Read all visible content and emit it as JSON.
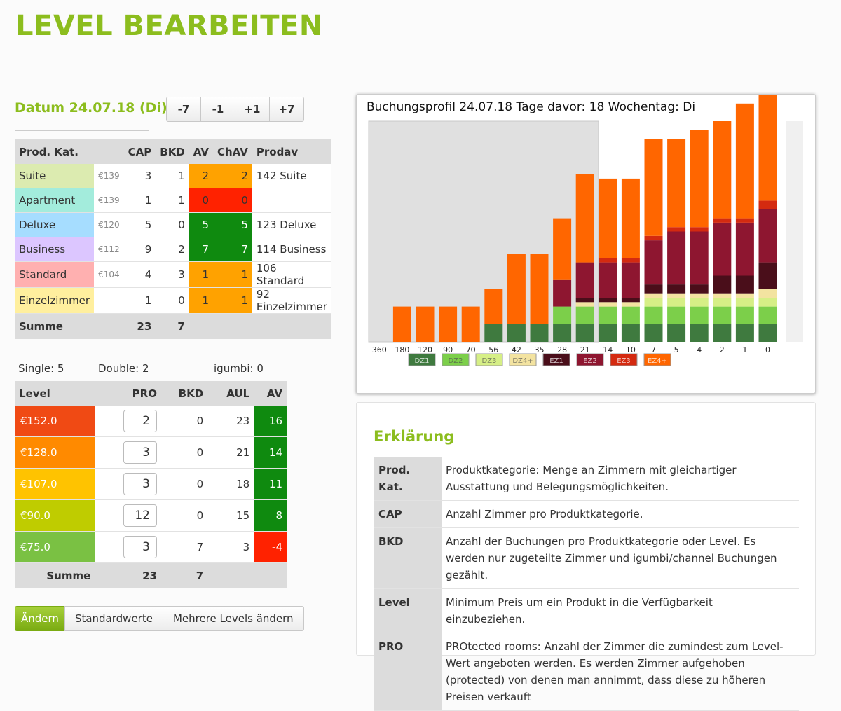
{
  "title": "LEVEL BEARBEITEN",
  "date_label": "Datum 24.07.18 (Di)",
  "nav_buttons": [
    "-7",
    "-1",
    "+1",
    "+7"
  ],
  "product_table": {
    "headers": [
      "Prod. Kat.",
      "CAP",
      "BKD",
      "AV",
      "ChAV",
      "Prodav"
    ],
    "rows": [
      {
        "name": "Suite",
        "price": "€139",
        "cap": "3",
        "bkd": "1",
        "av": "2",
        "chav": "2",
        "prodav": "142 Suite",
        "color": "#dcebb0",
        "av_color": "#ffa200"
      },
      {
        "name": "Apartment",
        "price": "€139",
        "cap": "1",
        "bkd": "1",
        "av": "0",
        "chav": "0",
        "prodav": "",
        "color": "#a3ecdc",
        "av_color": "#ff2200"
      },
      {
        "name": "Deluxe",
        "price": "€120",
        "cap": "5",
        "bkd": "0",
        "av": "5",
        "chav": "5",
        "prodav": "123 Deluxe",
        "color": "#a6ddff",
        "av_color": "#0f8a0f"
      },
      {
        "name": "Business",
        "price": "€112",
        "cap": "9",
        "bkd": "2",
        "av": "7",
        "chav": "7",
        "prodav": "114 Business",
        "color": "#dcc6ff",
        "av_color": "#0f8a0f"
      },
      {
        "name": "Standard",
        "price": "€104",
        "cap": "4",
        "bkd": "3",
        "av": "1",
        "chav": "1",
        "prodav": "106 Standard",
        "color": "#ffb0b0",
        "av_color": "#ffa200"
      },
      {
        "name": "Einzelzimmer",
        "price": "",
        "cap": "1",
        "bkd": "0",
        "av": "1",
        "chav": "1",
        "prodav": "92 Einzelzimmer",
        "color": "#ffef9e",
        "av_color": "#ffa200"
      }
    ],
    "sum_label": "Summe",
    "sum_cap": "23",
    "sum_bkd": "7"
  },
  "counts": {
    "single": "Single: 5",
    "double": "Double: 2",
    "igumbi": "igumbi: 0"
  },
  "level_table": {
    "headers": [
      "Level",
      "PRO",
      "BKD",
      "AUL",
      "AV"
    ],
    "rows": [
      {
        "level": "€152.0",
        "pro": "2",
        "bkd": "0",
        "aul": "23",
        "av": "16",
        "color": "#f04a14",
        "av_color": "#0f8a0f"
      },
      {
        "level": "€128.0",
        "pro": "3",
        "bkd": "0",
        "aul": "21",
        "av": "14",
        "color": "#ff8a00",
        "av_color": "#0f8a0f"
      },
      {
        "level": "€107.0",
        "pro": "3",
        "bkd": "0",
        "aul": "18",
        "av": "11",
        "color": "#ffc300",
        "av_color": "#0f8a0f"
      },
      {
        "level": "€90.0",
        "pro": "12",
        "bkd": "0",
        "aul": "15",
        "av": "8",
        "color": "#bfcc00",
        "av_color": "#0f8a0f"
      },
      {
        "level": "€75.0",
        "pro": "3",
        "bkd": "7",
        "aul": "3",
        "av": "-4",
        "color": "#7ac143",
        "av_color": "#ff2200"
      }
    ],
    "sum_label": "Summe",
    "sum_pro": "23",
    "sum_bkd": "7"
  },
  "buttons": {
    "change": "Ändern",
    "defaults": "Standardwerte",
    "multi": "Mehrere Levels ändern"
  },
  "chart_data": {
    "type": "bar",
    "title": "Buchungsprofil 24.07.18 Tage davor: 18 Wochentag: Di",
    "categories": [
      "360",
      "180",
      "120",
      "90",
      "70",
      "56",
      "42",
      "35",
      "28",
      "21",
      "14",
      "10",
      "7",
      "5",
      "4",
      "2",
      "1",
      "0"
    ],
    "series": [
      {
        "name": "DZ1",
        "color": "#3f7a3f",
        "values": [
          0,
          0,
          0,
          0,
          0,
          2,
          2,
          2,
          2,
          2,
          2,
          2,
          2,
          2,
          2,
          2,
          2,
          2
        ]
      },
      {
        "name": "DZ2",
        "color": "#7ccf4a",
        "values": [
          0,
          0,
          0,
          0,
          0,
          0,
          0,
          0,
          2,
          2,
          2,
          2,
          2,
          2,
          2,
          2,
          2,
          2
        ]
      },
      {
        "name": "DZ3",
        "color": "#d6ef86",
        "values": [
          0,
          0,
          0,
          0,
          0,
          0,
          0,
          0,
          0,
          0,
          0,
          0,
          1,
          1,
          1,
          1,
          1,
          1
        ]
      },
      {
        "name": "DZ4+",
        "color": "#f3e3a0",
        "values": [
          0,
          0,
          0,
          0,
          0,
          0,
          0,
          0,
          0,
          0.5,
          0.5,
          0.5,
          0.5,
          0.5,
          0.5,
          0.5,
          0.5,
          1
        ]
      },
      {
        "name": "EZ1",
        "color": "#4a0e1a",
        "values": [
          0,
          0,
          0,
          0,
          0,
          0,
          0,
          0,
          0,
          0.5,
          0.5,
          0.5,
          1,
          1,
          1,
          2,
          2,
          3
        ]
      },
      {
        "name": "EZ2",
        "color": "#8e1630",
        "values": [
          0,
          0,
          0,
          0,
          0,
          0,
          0,
          0,
          3,
          4,
          4,
          4,
          5,
          6,
          6,
          6,
          6,
          6
        ]
      },
      {
        "name": "EZ3",
        "color": "#d42a10",
        "values": [
          0,
          0,
          0,
          0,
          0,
          0,
          0,
          0,
          0,
          0,
          0.5,
          0.5,
          0.5,
          0.5,
          0.5,
          0.5,
          0.5,
          1
        ]
      },
      {
        "name": "EZ4+",
        "color": "#ff6600",
        "values": [
          0,
          4,
          4,
          4,
          4,
          4,
          8,
          8,
          7,
          10,
          9,
          9,
          11,
          10,
          11,
          11,
          13,
          12
        ]
      }
    ],
    "ylim": [
      0,
      25
    ],
    "legend_position": "bottom"
  },
  "explanation": {
    "title": "Erklärung",
    "rows": [
      {
        "term": "Prod. Kat.",
        "text": "Produktkategorie: Menge an Zimmern mit gleichartiger Ausstattung und Belegungsmöglichkeiten."
      },
      {
        "term": "CAP",
        "text": "Anzahl Zimmer pro Produktkategorie."
      },
      {
        "term": "BKD",
        "text": "Anzahl der Buchungen pro Produktkategorie oder Level. Es werden nur zugeteilte Zimmer und igumbi/channel Buchungen gezählt."
      },
      {
        "term": "Level",
        "text": "Minimum Preis um ein Produkt in die Verfügbarkeit einzubeziehen."
      },
      {
        "term": "PRO",
        "text": "PROtected rooms: Anzahl der Zimmer die zumindest zum Level-Wert angeboten werden. Es werden Zimmer aufgehoben (protected) von denen man annimmt, dass diese zu höheren Preisen verkauft"
      }
    ]
  }
}
